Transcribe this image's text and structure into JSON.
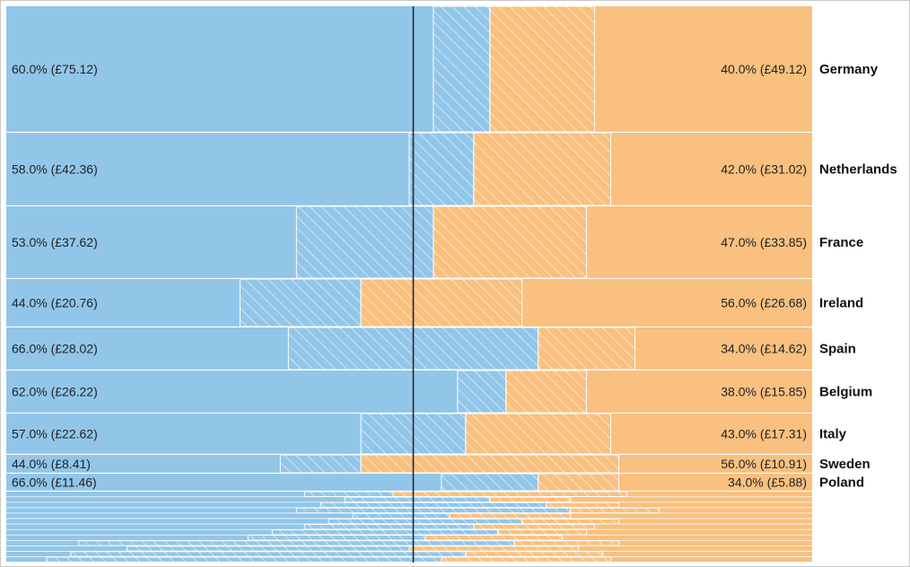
{
  "chart_data": {
    "type": "bar",
    "layout": "mekko",
    "colors": {
      "left": "#92c6e9",
      "right": "#f9c07f",
      "divider": "#1e2a35",
      "hatch": "#ffffff"
    },
    "rows": [
      {
        "country": "Germany",
        "left_pct": 60.0,
        "left_val": "60.0% (£75.12)",
        "right_pct": 40.0,
        "right_val": "40.0% (£49.12)",
        "hatch_left": [
          53,
          60
        ],
        "hatch_right": [
          60,
          73
        ]
      },
      {
        "country": "Netherlands",
        "left_pct": 58.0,
        "left_val": "58.0% (£42.36)",
        "right_pct": 42.0,
        "right_val": "42.0% (£31.02)",
        "hatch_left": [
          50,
          58
        ],
        "hatch_right": [
          58,
          75
        ]
      },
      {
        "country": "France",
        "left_pct": 53.0,
        "left_val": "53.0% (£37.62)",
        "right_pct": 47.0,
        "right_val": "47.0% (£33.85)",
        "hatch_left": [
          36,
          53
        ],
        "hatch_right": [
          53,
          72
        ]
      },
      {
        "country": "Ireland",
        "left_pct": 44.0,
        "left_val": "44.0% (£20.76)",
        "right_pct": 56.0,
        "right_val": "56.0% (£26.68)",
        "hatch_left": [
          29,
          44
        ],
        "hatch_right": [
          44,
          64
        ]
      },
      {
        "country": "Spain",
        "left_pct": 66.0,
        "left_val": "66.0% (£28.02)",
        "right_pct": 34.0,
        "right_val": "34.0% (£14.62)",
        "hatch_left": [
          35,
          66
        ],
        "hatch_right": [
          66,
          78
        ]
      },
      {
        "country": "Belgium",
        "left_pct": 62.0,
        "left_val": "62.0% (£26.22)",
        "right_pct": 38.0,
        "right_val": "38.0% (£15.85)",
        "hatch_left": [
          56,
          62
        ],
        "hatch_right": [
          62,
          72
        ]
      },
      {
        "country": "Italy",
        "left_pct": 57.0,
        "left_val": "57.0% (£22.62)",
        "right_pct": 43.0,
        "right_val": "43.0% (£17.31)",
        "hatch_left": [
          44,
          57
        ],
        "hatch_right": [
          57,
          75
        ]
      },
      {
        "country": "Sweden",
        "left_pct": 44.0,
        "left_val": "44.0% (£8.41)",
        "right_pct": 56.0,
        "right_val": "56.0% (£10.91)",
        "hatch_left": [
          34,
          44
        ],
        "hatch_right": [
          44,
          76
        ]
      },
      {
        "country": "Poland",
        "left_pct": 66.0,
        "left_val": "66.0% (£11.46)",
        "right_pct": 34.0,
        "right_val": "34.0% (£5.88)",
        "hatch_left": [
          54,
          66
        ],
        "hatch_right": [
          66,
          76
        ]
      }
    ],
    "minor_rows": [
      {
        "left_pct": 48.0,
        "hatch_left": [
          37,
          48
        ],
        "hatch_right": [
          48,
          77
        ]
      },
      {
        "left_pct": 60.0,
        "hatch_left": [
          42,
          60
        ],
        "hatch_right": [
          60,
          70
        ]
      },
      {
        "left_pct": 67.0,
        "hatch_left": [
          39,
          67
        ],
        "hatch_right": [
          67,
          76
        ]
      },
      {
        "left_pct": 70.0,
        "hatch_left": [
          36,
          70
        ],
        "hatch_right": [
          70,
          81
        ]
      },
      {
        "left_pct": 55.0,
        "hatch_left": [
          43,
          55
        ],
        "hatch_right": [
          55,
          70
        ]
      },
      {
        "left_pct": 64.0,
        "hatch_left": [
          40,
          64
        ],
        "hatch_right": [
          64,
          76
        ]
      },
      {
        "left_pct": 58.0,
        "hatch_left": [
          37,
          58
        ],
        "hatch_right": [
          58,
          73
        ]
      },
      {
        "left_pct": 61.0,
        "hatch_left": [
          33,
          61
        ],
        "hatch_right": [
          61,
          72
        ]
      },
      {
        "left_pct": 52.0,
        "hatch_left": [
          30,
          52
        ],
        "hatch_right": [
          52,
          69
        ]
      },
      {
        "left_pct": 63.0,
        "hatch_left": [
          9,
          63
        ],
        "hatch_right": [
          63,
          76
        ]
      },
      {
        "left_pct": 50.0,
        "hatch_left": [
          15,
          50
        ],
        "hatch_right": [
          50,
          71
        ]
      },
      {
        "left_pct": 57.0,
        "hatch_left": [
          8,
          57
        ],
        "hatch_right": [
          57,
          74
        ]
      },
      {
        "left_pct": 54.0,
        "hatch_left": [
          5,
          54
        ],
        "hatch_right": [
          54,
          75
        ]
      }
    ],
    "reference_line_pct": 50.5
  }
}
